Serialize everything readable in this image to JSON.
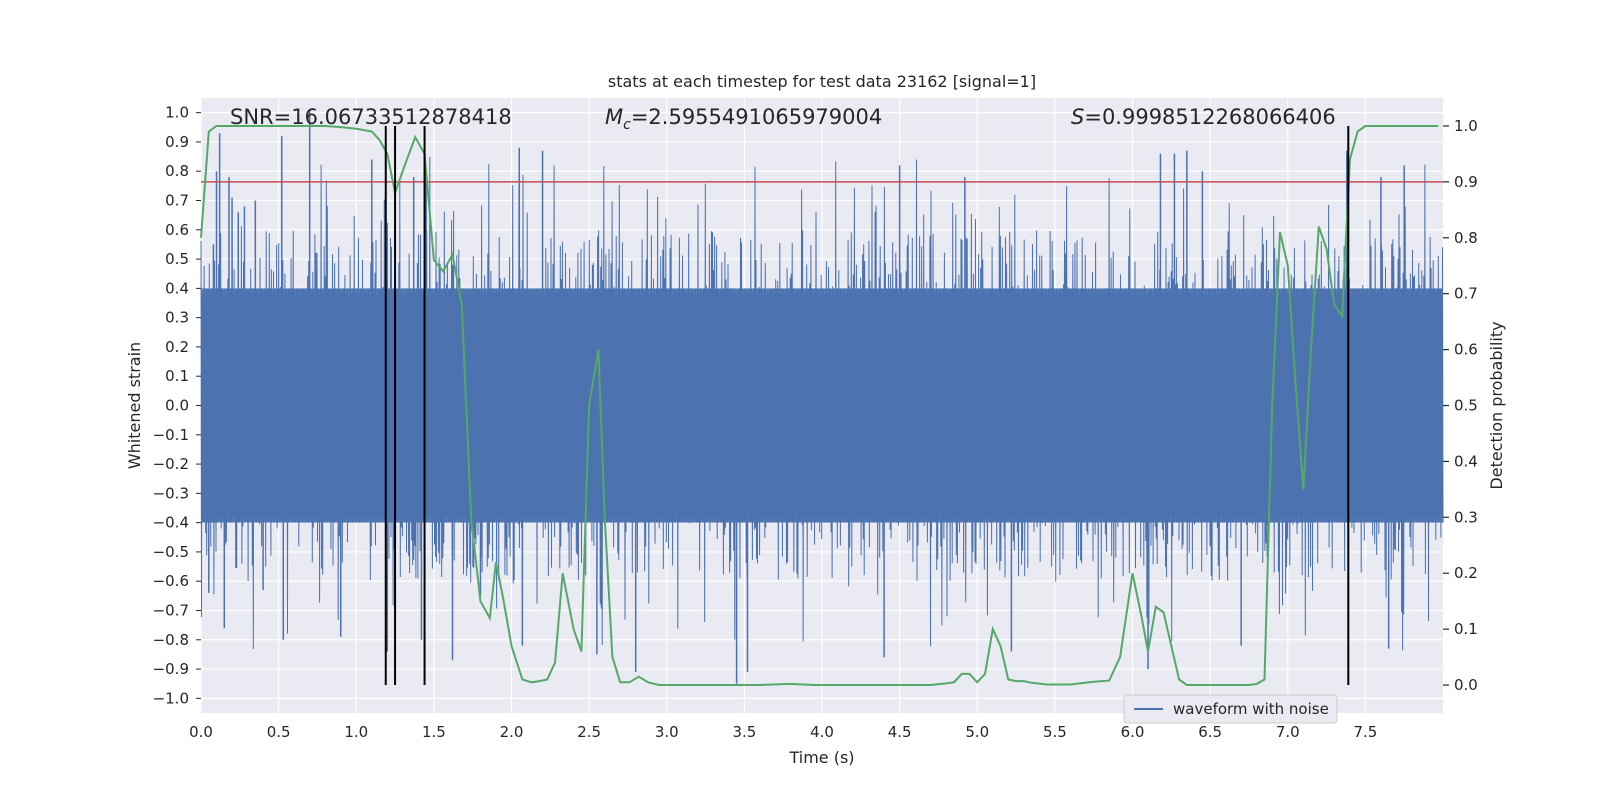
{
  "chart_data": {
    "type": "line",
    "title": "stats at each timestep for test data 23162 [signal=1]",
    "xlabel": "Time (s)",
    "ylabel_left": "Whitened strain",
    "ylabel_right": "Detection probability",
    "xlim": [
      0.0,
      8.0
    ],
    "ylim_left": [
      -1.05,
      1.05
    ],
    "ylim_right": [
      -0.05,
      1.05
    ],
    "x_ticks": [
      "0.0",
      "0.5",
      "1.0",
      "1.5",
      "2.0",
      "2.5",
      "3.0",
      "3.5",
      "4.0",
      "4.5",
      "5.0",
      "5.5",
      "6.0",
      "6.5",
      "7.0",
      "7.5"
    ],
    "y_left_ticks": [
      "1.0",
      "0.9",
      "0.8",
      "0.7",
      "0.6",
      "0.5",
      "0.4",
      "0.3",
      "0.2",
      "0.1",
      "0.0",
      "-0.1",
      "-0.2",
      "-0.3",
      "-0.4",
      "-0.5",
      "-0.6",
      "-0.7",
      "-0.8",
      "-0.9",
      "-1.0"
    ],
    "y_right_ticks": [
      "1.0",
      "0.9",
      "0.8",
      "0.7",
      "0.6",
      "0.5",
      "0.4",
      "0.3",
      "0.2",
      "0.1",
      "0.0"
    ],
    "grid": true,
    "annotations": {
      "snr": "SNR=16.06733512878418",
      "mc_symbol": "M",
      "mc_sub": "c",
      "mc_value": "=2.5955491065979004",
      "s_symbol": "S",
      "s_value": "=0.9998512268066406"
    },
    "legend": {
      "label": "waveform with noise",
      "location": "lower-right"
    },
    "colors": {
      "waveform": "#4c72b0",
      "probability": "#55a868",
      "threshold": "#c44e52",
      "vlines": "#000000",
      "background": "#eaeaf2"
    },
    "threshold": 0.9,
    "vlines": [
      1.19,
      1.25,
      1.44,
      7.39
    ],
    "waveform": {
      "seed": 23162,
      "duration": 8.0,
      "core_amplitude": 0.4,
      "max_amplitude": 1.0
    },
    "series": [
      {
        "name": "Detection probability",
        "axis": "right",
        "x": [
          0.0,
          0.05,
          0.1,
          0.2,
          0.3,
          0.4,
          0.5,
          0.6,
          0.7,
          0.8,
          0.9,
          1.0,
          1.1,
          1.15,
          1.2,
          1.25,
          1.3,
          1.38,
          1.44,
          1.5,
          1.56,
          1.62,
          1.68,
          1.74,
          1.8,
          1.86,
          1.9,
          1.95,
          2.0,
          2.07,
          2.13,
          2.18,
          2.23,
          2.28,
          2.33,
          2.4,
          2.45,
          2.5,
          2.56,
          2.6,
          2.65,
          2.7,
          2.76,
          2.82,
          2.88,
          2.95,
          3.0,
          3.2,
          3.4,
          3.6,
          3.8,
          3.95,
          4.1,
          4.3,
          4.5,
          4.7,
          4.8,
          4.85,
          4.9,
          4.95,
          5.0,
          5.05,
          5.1,
          5.15,
          5.2,
          5.25,
          5.3,
          5.35,
          5.45,
          5.6,
          5.75,
          5.85,
          5.92,
          6.0,
          6.06,
          6.1,
          6.15,
          6.2,
          6.25,
          6.3,
          6.35,
          6.45,
          6.6,
          6.75,
          6.8,
          6.85,
          6.9,
          6.95,
          7.0,
          7.05,
          7.1,
          7.15,
          7.2,
          7.25,
          7.3,
          7.35,
          7.4,
          7.45,
          7.5,
          7.6,
          7.8,
          7.97
        ],
        "y": [
          0.8,
          0.99,
          1.0,
          1.0,
          1.0,
          1.0,
          1.0,
          1.0,
          1.0,
          1.0,
          0.998,
          0.995,
          0.99,
          0.975,
          0.95,
          0.88,
          0.92,
          0.98,
          0.95,
          0.76,
          0.74,
          0.77,
          0.68,
          0.3,
          0.15,
          0.12,
          0.22,
          0.15,
          0.07,
          0.01,
          0.005,
          0.007,
          0.01,
          0.04,
          0.2,
          0.1,
          0.06,
          0.5,
          0.6,
          0.3,
          0.05,
          0.005,
          0.005,
          0.015,
          0.005,
          0.0,
          0.0,
          0.0,
          0.0,
          0.0,
          0.002,
          0.0,
          0.0,
          0.0,
          0.0,
          0.0,
          0.003,
          0.005,
          0.02,
          0.02,
          0.005,
          0.02,
          0.1,
          0.07,
          0.01,
          0.007,
          0.007,
          0.004,
          0.001,
          0.001,
          0.006,
          0.008,
          0.05,
          0.2,
          0.12,
          0.06,
          0.14,
          0.13,
          0.07,
          0.01,
          0.0,
          0.0,
          0.0,
          0.0,
          0.002,
          0.01,
          0.5,
          0.81,
          0.75,
          0.54,
          0.35,
          0.6,
          0.82,
          0.78,
          0.68,
          0.66,
          0.94,
          0.99,
          1.0,
          1.0,
          1.0,
          1.0
        ]
      },
      {
        "name": "waveform with noise",
        "axis": "left",
        "type": "noise",
        "spikes": [
          {
            "x": 0.08,
            "y": 0.55
          },
          {
            "x": 0.1,
            "y": 0.8
          },
          {
            "x": 0.12,
            "y": 0.93
          },
          {
            "x": 0.18,
            "y": 0.78
          },
          {
            "x": 0.2,
            "y": 0.71
          },
          {
            "x": 0.24,
            "y": 0.66
          },
          {
            "x": 0.28,
            "y": 0.68
          },
          {
            "x": 0.35,
            "y": 0.7
          },
          {
            "x": 0.52,
            "y": 0.92
          },
          {
            "x": 0.7,
            "y": 1.01
          },
          {
            "x": 1.1,
            "y": 0.84
          },
          {
            "x": 1.37,
            "y": 0.78
          },
          {
            "x": 1.45,
            "y": 0.79
          },
          {
            "x": 2.05,
            "y": 0.88
          },
          {
            "x": 2.2,
            "y": 0.87
          },
          {
            "x": 4.5,
            "y": 0.82
          },
          {
            "x": 4.92,
            "y": 0.78
          },
          {
            "x": 6.18,
            "y": 0.86
          },
          {
            "x": 6.27,
            "y": 0.86
          },
          {
            "x": 6.35,
            "y": 0.87
          },
          {
            "x": 6.45,
            "y": 0.8
          },
          {
            "x": 7.38,
            "y": 0.87
          },
          {
            "x": 7.6,
            "y": 0.78
          },
          {
            "x": 7.75,
            "y": 0.82
          },
          {
            "x": 0.05,
            "y": -0.64
          },
          {
            "x": 0.15,
            "y": -0.76
          },
          {
            "x": 0.4,
            "y": -0.63
          },
          {
            "x": 0.53,
            "y": -0.8
          },
          {
            "x": 0.9,
            "y": -0.79
          },
          {
            "x": 1.2,
            "y": -0.84
          },
          {
            "x": 1.42,
            "y": -0.8
          },
          {
            "x": 1.62,
            "y": -0.87
          },
          {
            "x": 1.8,
            "y": -0.65
          },
          {
            "x": 2.07,
            "y": -0.82
          },
          {
            "x": 2.55,
            "y": -0.85
          },
          {
            "x": 2.8,
            "y": -0.91
          },
          {
            "x": 3.45,
            "y": -0.95
          },
          {
            "x": 3.52,
            "y": -0.91
          },
          {
            "x": 4.4,
            "y": -0.86
          },
          {
            "x": 5.22,
            "y": -0.84
          },
          {
            "x": 6.1,
            "y": -0.9
          },
          {
            "x": 6.7,
            "y": -0.82
          },
          {
            "x": 7.65,
            "y": -0.83
          }
        ]
      }
    ]
  }
}
